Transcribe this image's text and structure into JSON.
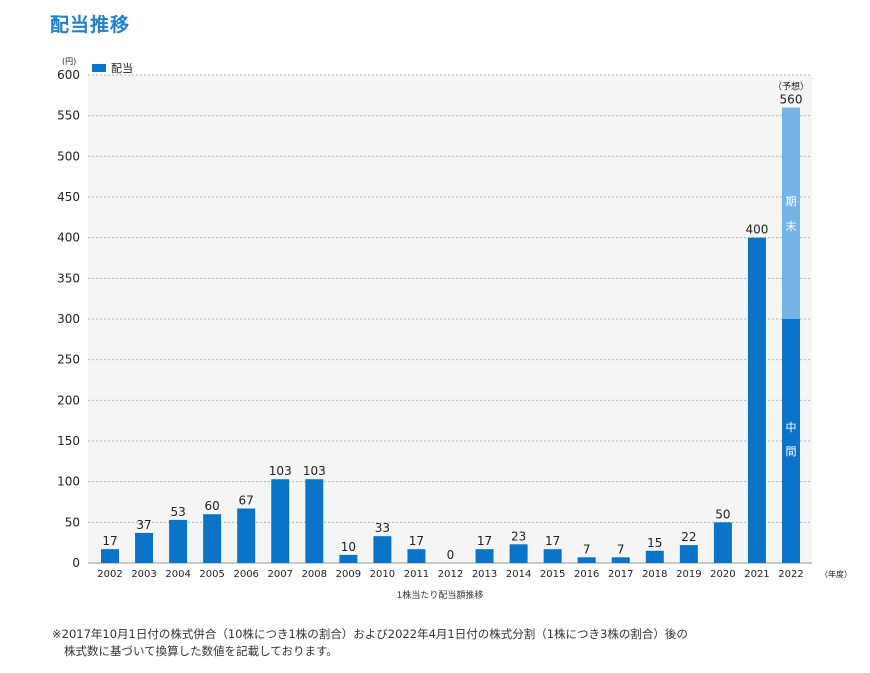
{
  "header": {
    "title": "配当推移"
  },
  "chart_data": {
    "type": "bar",
    "stacked_last": true,
    "categories": [
      "2002",
      "2003",
      "2004",
      "2005",
      "2006",
      "2007",
      "2008",
      "2009",
      "2010",
      "2011",
      "2012",
      "2013",
      "2014",
      "2015",
      "2016",
      "2017",
      "2018",
      "2019",
      "2020",
      "2021",
      "2022"
    ],
    "values": [
      17,
      37,
      53,
      60,
      67,
      103,
      103,
      10,
      33,
      17,
      0,
      17,
      23,
      17,
      7,
      7,
      15,
      22,
      50,
      400,
      560
    ],
    "series": [
      {
        "name": "配当",
        "values": [
          17,
          37,
          53,
          60,
          67,
          103,
          103,
          10,
          33,
          17,
          0,
          17,
          23,
          17,
          7,
          7,
          15,
          22,
          50,
          400,
          300
        ],
        "color": "#0a74c9"
      },
      {
        "name": "",
        "values": [
          0,
          0,
          0,
          0,
          0,
          0,
          0,
          0,
          0,
          0,
          0,
          0,
          0,
          0,
          0,
          0,
          0,
          0,
          0,
          0,
          260
        ],
        "color": "#74b4e6"
      }
    ],
    "segment_labels": {
      "interim": "中間",
      "final": "期末"
    },
    "forecast_label": "（予想）",
    "legend": {
      "label": "配当",
      "placement": "top-left"
    },
    "ylabel": "(円)",
    "xunit": "（年度）",
    "xlabel": "1株当たり配当額推移",
    "ylim": [
      0,
      600
    ],
    "yticks": [
      0,
      50,
      100,
      150,
      200,
      250,
      300,
      350,
      400,
      450,
      500,
      550,
      600
    ],
    "grid": true
  },
  "footnote": {
    "line1": "※2017年10月1日付の株式併合（10株につき1株の割合）および2022年4月1日付の株式分割（1株につき3株の割合）後の",
    "line2": "株式数に基づいて換算した数値を記載しております。"
  }
}
